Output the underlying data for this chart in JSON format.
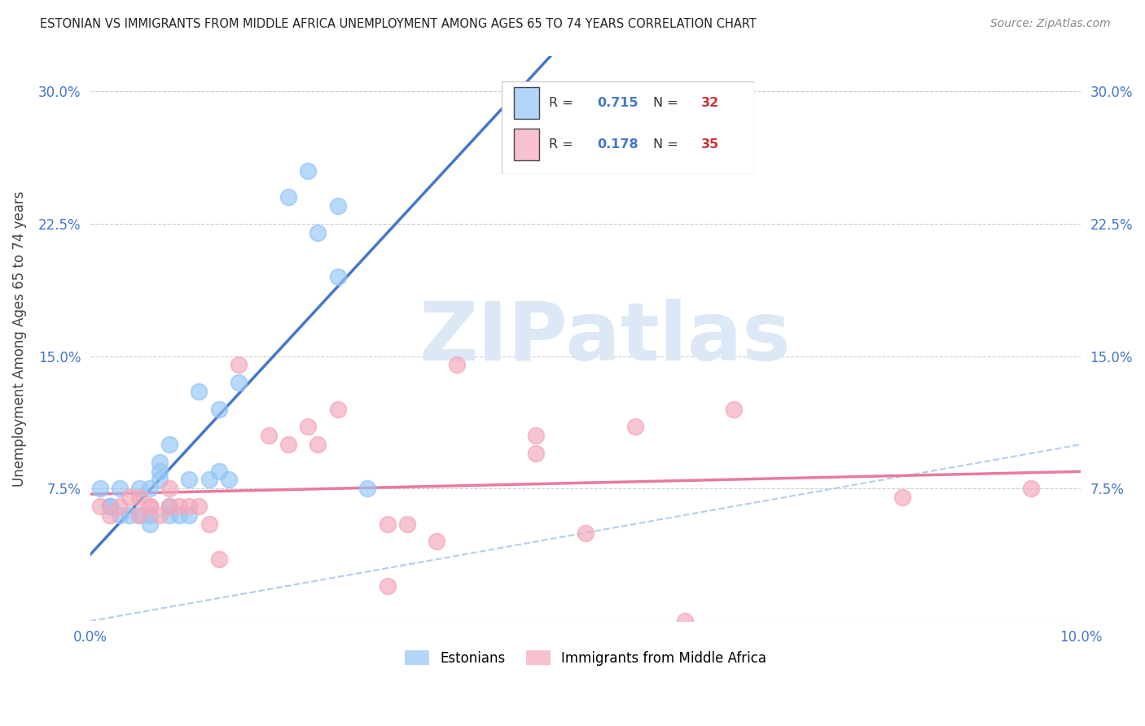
{
  "title": "ESTONIAN VS IMMIGRANTS FROM MIDDLE AFRICA UNEMPLOYMENT AMONG AGES 65 TO 74 YEARS CORRELATION CHART",
  "source": "Source: ZipAtlas.com",
  "ylabel": "Unemployment Among Ages 65 to 74 years",
  "xlim": [
    0.0,
    0.1
  ],
  "ylim": [
    0.0,
    0.32
  ],
  "ytick_vals": [
    0.0,
    0.075,
    0.15,
    0.225,
    0.3
  ],
  "xtick_vals": [
    0.0,
    0.02,
    0.04,
    0.06,
    0.08,
    0.1
  ],
  "blue_color": "#92c5f7",
  "pink_color": "#f4a7b9",
  "blue_line_color": "#4477cc",
  "pink_line_color": "#e87aa0",
  "diag_line_color": "#aac8ee",
  "watermark_color": "#dce8f5",
  "legend_R_color": "#4477cc",
  "legend_N_color": "#cc3333",
  "tick_label_color": "#4477cc",
  "blue_x": [
    0.001,
    0.002,
    0.002,
    0.003,
    0.003,
    0.004,
    0.005,
    0.005,
    0.006,
    0.006,
    0.006,
    0.007,
    0.007,
    0.007,
    0.008,
    0.008,
    0.008,
    0.009,
    0.01,
    0.01,
    0.011,
    0.012,
    0.013,
    0.013,
    0.014,
    0.015,
    0.02,
    0.022,
    0.023,
    0.025,
    0.025,
    0.028
  ],
  "blue_y": [
    0.075,
    0.065,
    0.065,
    0.06,
    0.075,
    0.06,
    0.075,
    0.06,
    0.055,
    0.06,
    0.075,
    0.08,
    0.085,
    0.09,
    0.06,
    0.065,
    0.1,
    0.06,
    0.06,
    0.08,
    0.13,
    0.08,
    0.085,
    0.12,
    0.08,
    0.135,
    0.24,
    0.255,
    0.22,
    0.235,
    0.195,
    0.075
  ],
  "pink_x": [
    0.001,
    0.002,
    0.003,
    0.004,
    0.005,
    0.005,
    0.006,
    0.006,
    0.007,
    0.008,
    0.008,
    0.009,
    0.01,
    0.011,
    0.012,
    0.013,
    0.015,
    0.018,
    0.02,
    0.022,
    0.023,
    0.025,
    0.03,
    0.03,
    0.032,
    0.035,
    0.037,
    0.045,
    0.045,
    0.05,
    0.055,
    0.06,
    0.065,
    0.082,
    0.095
  ],
  "pink_y": [
    0.065,
    0.06,
    0.065,
    0.07,
    0.06,
    0.07,
    0.065,
    0.065,
    0.06,
    0.065,
    0.075,
    0.065,
    0.065,
    0.065,
    0.055,
    0.035,
    0.145,
    0.105,
    0.1,
    0.11,
    0.1,
    0.12,
    0.02,
    0.055,
    0.055,
    0.045,
    0.145,
    0.095,
    0.105,
    0.05,
    0.11,
    0.0,
    0.12,
    0.07,
    0.075
  ],
  "legend_R_blue": "0.715",
  "legend_N_blue": "32",
  "legend_R_pink": "0.178",
  "legend_N_pink": "35"
}
